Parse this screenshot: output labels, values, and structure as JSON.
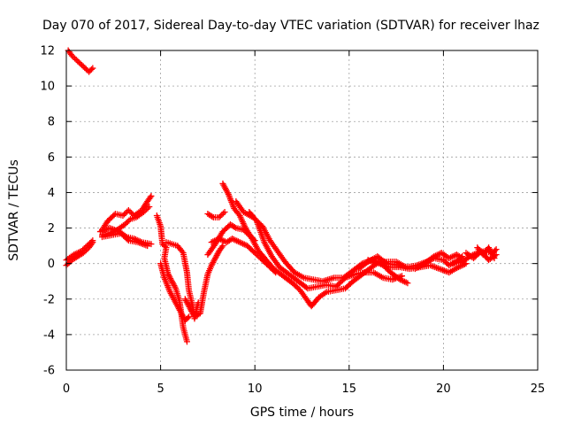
{
  "chart_data": {
    "type": "scatter",
    "title": "Day 070 of 2017, Sidereal Day-to-day VTEC variation (SDTVAR) for receiver lhaz",
    "xlabel": "GPS time / hours",
    "ylabel": "SDTVAR / TECUs",
    "xlim": [
      0,
      25
    ],
    "ylim": [
      -6,
      12
    ],
    "xticks": [
      0,
      5,
      10,
      15,
      20,
      25
    ],
    "yticks": [
      -6,
      -4,
      -2,
      0,
      2,
      4,
      6,
      8,
      10,
      12
    ],
    "grid": true,
    "marker": "+",
    "series": [
      {
        "name": "SDTVAR",
        "color": "#ff0000",
        "segments": [
          [
            [
              0.1,
              12.0
            ],
            [
              0.3,
              11.7
            ],
            [
              0.6,
              11.4
            ],
            [
              0.9,
              11.1
            ],
            [
              1.2,
              10.8
            ],
            [
              1.4,
              11.0
            ]
          ],
          [
            [
              0.0,
              -0.1
            ],
            [
              0.3,
              0.2
            ],
            [
              0.6,
              0.4
            ],
            [
              0.9,
              0.6
            ],
            [
              1.2,
              0.9
            ],
            [
              1.4,
              1.2
            ]
          ],
          [
            [
              0.0,
              0.2
            ],
            [
              0.4,
              0.5
            ],
            [
              0.8,
              0.7
            ],
            [
              1.1,
              1.0
            ],
            [
              1.4,
              1.3
            ]
          ],
          [
            [
              1.9,
              1.9
            ],
            [
              2.2,
              2.4
            ],
            [
              2.6,
              2.8
            ],
            [
              3.0,
              2.7
            ],
            [
              3.3,
              3.0
            ],
            [
              3.6,
              2.7
            ],
            [
              4.0,
              3.0
            ],
            [
              4.3,
              3.5
            ],
            [
              4.5,
              3.8
            ]
          ],
          [
            [
              1.9,
              1.6
            ],
            [
              2.3,
              1.7
            ],
            [
              2.7,
              1.9
            ],
            [
              3.1,
              2.2
            ],
            [
              3.4,
              2.5
            ],
            [
              3.7,
              2.6
            ],
            [
              4.1,
              2.9
            ],
            [
              4.4,
              3.2
            ]
          ],
          [
            [
              1.8,
              1.8
            ],
            [
              2.3,
              2.0
            ],
            [
              2.8,
              1.8
            ],
            [
              3.2,
              1.5
            ],
            [
              3.6,
              1.4
            ],
            [
              4.0,
              1.2
            ],
            [
              4.5,
              1.1
            ]
          ],
          [
            [
              1.9,
              1.5
            ],
            [
              2.4,
              1.6
            ],
            [
              2.9,
              1.7
            ],
            [
              3.3,
              1.3
            ],
            [
              3.8,
              1.2
            ],
            [
              4.3,
              1.0
            ]
          ],
          [
            [
              4.8,
              2.7
            ],
            [
              5.0,
              2.1
            ],
            [
              5.1,
              1.1
            ],
            [
              5.3,
              0.9
            ],
            [
              5.2,
              0.3
            ],
            [
              5.4,
              -0.6
            ],
            [
              5.6,
              -1.0
            ],
            [
              5.8,
              -1.4
            ],
            [
              6.0,
              -2.1
            ],
            [
              6.2,
              -3.6
            ],
            [
              6.4,
              -4.4
            ]
          ],
          [
            [
              5.0,
              0.0
            ],
            [
              5.2,
              -0.8
            ],
            [
              5.5,
              -1.6
            ],
            [
              5.8,
              -2.2
            ],
            [
              6.1,
              -2.8
            ],
            [
              6.3,
              -3.2
            ],
            [
              6.5,
              -3.0
            ]
          ],
          [
            [
              5.3,
              1.2
            ],
            [
              5.6,
              1.1
            ],
            [
              5.9,
              1.0
            ],
            [
              6.2,
              0.6
            ],
            [
              6.4,
              -0.5
            ],
            [
              6.5,
              -1.5
            ],
            [
              6.7,
              -2.4
            ],
            [
              6.8,
              -3.1
            ],
            [
              6.9,
              -2.6
            ],
            [
              7.0,
              -2.2
            ]
          ],
          [
            [
              6.3,
              -2.0
            ],
            [
              6.6,
              -2.6
            ],
            [
              6.8,
              -3.0
            ],
            [
              7.1,
              -2.8
            ],
            [
              7.3,
              -1.6
            ],
            [
              7.5,
              -0.6
            ],
            [
              7.7,
              -0.1
            ],
            [
              7.9,
              0.3
            ],
            [
              8.1,
              0.7
            ],
            [
              8.3,
              1.0
            ]
          ],
          [
            [
              7.5,
              0.5
            ],
            [
              7.9,
              1.1
            ],
            [
              8.3,
              1.8
            ],
            [
              8.7,
              2.2
            ],
            [
              9.0,
              2.0
            ],
            [
              9.4,
              1.9
            ],
            [
              9.7,
              1.6
            ],
            [
              10.0,
              1.3
            ]
          ],
          [
            [
              7.7,
              1.2
            ],
            [
              8.1,
              1.4
            ],
            [
              8.5,
              1.2
            ],
            [
              8.8,
              1.4
            ],
            [
              9.2,
              1.2
            ],
            [
              9.6,
              1.0
            ],
            [
              10.0,
              0.6
            ],
            [
              10.3,
              0.3
            ],
            [
              10.7,
              -0.1
            ],
            [
              11.1,
              -0.5
            ]
          ],
          [
            [
              7.5,
              2.8
            ],
            [
              7.8,
              2.6
            ],
            [
              8.1,
              2.6
            ],
            [
              8.4,
              2.9
            ]
          ],
          [
            [
              8.3,
              4.5
            ],
            [
              8.6,
              3.9
            ],
            [
              8.9,
              3.1
            ],
            [
              9.2,
              2.7
            ],
            [
              9.5,
              2.0
            ],
            [
              9.8,
              1.5
            ],
            [
              10.2,
              0.7
            ],
            [
              10.6,
              0.2
            ],
            [
              11.0,
              -0.3
            ],
            [
              11.5,
              -0.7
            ],
            [
              12.0,
              -1.1
            ],
            [
              12.4,
              -1.5
            ],
            [
              12.8,
              -2.1
            ],
            [
              13.0,
              -2.4
            ],
            [
              13.4,
              -1.9
            ],
            [
              13.8,
              -1.6
            ],
            [
              14.3,
              -1.5
            ],
            [
              14.8,
              -1.4
            ],
            [
              15.2,
              -1.0
            ],
            [
              15.7,
              -0.6
            ],
            [
              16.2,
              -0.2
            ],
            [
              16.6,
              0.1
            ],
            [
              17.0,
              0.1
            ],
            [
              17.5,
              0.1
            ],
            [
              18.0,
              -0.2
            ]
          ],
          [
            [
              9.0,
              3.5
            ],
            [
              9.4,
              2.9
            ],
            [
              9.9,
              2.6
            ],
            [
              10.4,
              2.1
            ],
            [
              10.8,
              1.3
            ],
            [
              11.2,
              0.7
            ],
            [
              11.6,
              0.1
            ],
            [
              12.1,
              -0.5
            ],
            [
              12.6,
              -0.8
            ],
            [
              13.1,
              -0.9
            ],
            [
              13.6,
              -1.0
            ],
            [
              14.2,
              -0.8
            ],
            [
              14.7,
              -0.8
            ],
            [
              15.2,
              -0.4
            ],
            [
              15.7,
              0.0
            ],
            [
              16.2,
              0.2
            ],
            [
              16.7,
              0.0
            ],
            [
              17.2,
              -0.5
            ],
            [
              17.7,
              -0.9
            ],
            [
              18.1,
              -1.1
            ]
          ],
          [
            [
              9.7,
              2.9
            ],
            [
              10.1,
              2.4
            ],
            [
              10.5,
              1.2
            ],
            [
              10.9,
              0.4
            ],
            [
              11.3,
              -0.2
            ],
            [
              11.8,
              -0.6
            ],
            [
              12.3,
              -1.0
            ],
            [
              12.8,
              -1.4
            ],
            [
              13.3,
              -1.3
            ],
            [
              13.8,
              -1.2
            ],
            [
              14.3,
              -1.3
            ],
            [
              14.8,
              -0.8
            ],
            [
              15.3,
              -0.6
            ],
            [
              15.8,
              -0.5
            ],
            [
              16.3,
              -0.5
            ],
            [
              16.8,
              -0.8
            ],
            [
              17.3,
              -0.9
            ],
            [
              17.8,
              -0.7
            ]
          ],
          [
            [
              15.5,
              -0.3
            ],
            [
              16.0,
              0.1
            ],
            [
              16.5,
              0.4
            ],
            [
              17.0,
              0.0
            ],
            [
              17.6,
              -0.1
            ],
            [
              18.1,
              -0.2
            ],
            [
              18.6,
              -0.1
            ],
            [
              19.1,
              0.1
            ],
            [
              19.5,
              0.3
            ],
            [
              20.0,
              0.2
            ],
            [
              20.3,
              -0.1
            ],
            [
              20.8,
              0.2
            ],
            [
              21.0,
              0.4
            ]
          ],
          [
            [
              16.0,
              0.2
            ],
            [
              16.6,
              0.0
            ],
            [
              17.1,
              -0.2
            ],
            [
              17.7,
              -0.2
            ],
            [
              18.2,
              -0.3
            ],
            [
              18.8,
              -0.2
            ],
            [
              19.3,
              -0.1
            ],
            [
              19.8,
              -0.3
            ],
            [
              20.3,
              -0.5
            ],
            [
              20.8,
              -0.2
            ],
            [
              21.2,
              0.0
            ]
          ],
          [
            [
              18.5,
              -0.3
            ],
            [
              19.0,
              0.0
            ],
            [
              19.5,
              0.4
            ],
            [
              19.9,
              0.6
            ],
            [
              20.3,
              0.3
            ],
            [
              20.7,
              0.5
            ],
            [
              21.0,
              0.3
            ]
          ],
          [
            [
              20.5,
              0.0
            ],
            [
              21.0,
              0.1
            ],
            [
              21.4,
              0.4
            ],
            [
              21.8,
              0.6
            ],
            [
              22.2,
              0.7
            ],
            [
              22.6,
              0.6
            ],
            [
              22.8,
              0.8
            ]
          ],
          [
            [
              21.2,
              0.6
            ],
            [
              21.6,
              0.3
            ],
            [
              22.0,
              0.7
            ],
            [
              22.4,
              0.2
            ],
            [
              22.8,
              0.5
            ]
          ],
          [
            [
              21.8,
              0.9
            ],
            [
              22.1,
              0.5
            ],
            [
              22.4,
              0.9
            ],
            [
              22.7,
              0.3
            ]
          ]
        ]
      }
    ]
  }
}
